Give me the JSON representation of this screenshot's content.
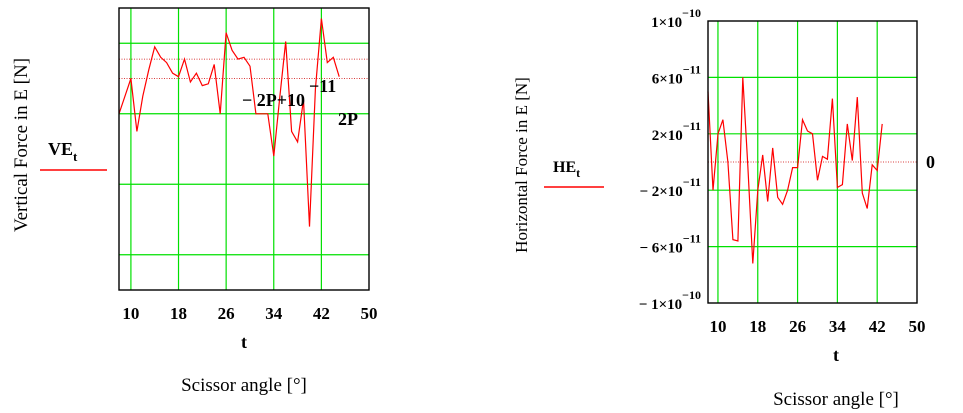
{
  "chart_data": [
    {
      "type": "line",
      "ylabel": "Vertical Force in E [N]",
      "xlabel": "Scissor angle [°]",
      "x_var": "t",
      "legend": {
        "label_main": "VE",
        "label_sub": "t"
      },
      "x_ticks": [
        "10",
        "18",
        "26",
        "34",
        "42",
        "50"
      ],
      "xlim": [
        8,
        50
      ],
      "ylim": [
        -12,
        4
      ],
      "grid": true,
      "annotations": {
        "upper_main": "− 2P+10",
        "upper_exp": "−11",
        "lower": "2P"
      },
      "marker_lines": [
        1.1,
        0
      ],
      "series": [
        {
          "color": "#ff0000",
          "x": [
            8,
            9,
            10,
            11,
            12,
            13,
            14,
            15,
            16,
            17,
            18,
            19,
            20,
            21,
            22,
            23,
            24,
            25,
            26,
            27,
            28,
            29,
            30,
            31,
            32,
            33,
            34,
            35,
            36,
            37,
            38,
            39,
            40,
            41,
            42,
            43,
            44,
            45
          ],
          "y": [
            -2,
            -1,
            0,
            -3,
            -1,
            0.5,
            1.8,
            1.2,
            0.9,
            0.3,
            0.1,
            1.1,
            -0.2,
            0.3,
            -0.4,
            -0.3,
            0.8,
            -2,
            2.6,
            1.6,
            1.1,
            1.2,
            0.7,
            -2,
            -2,
            -2,
            -4.4,
            -1.1,
            2.1,
            -3,
            -3.6,
            -1.2,
            -8.4,
            -0.6,
            3.4,
            0.9,
            1.2,
            0.1
          ]
        }
      ]
    },
    {
      "type": "line",
      "ylabel": "Horizontal Force in E [N]",
      "xlabel": "Scissor angle [°]",
      "x_var": "t",
      "legend": {
        "label_main": "HE",
        "label_sub": "t"
      },
      "x_ticks": [
        "10",
        "18",
        "26",
        "34",
        "42",
        "50"
      ],
      "xlim": [
        8,
        50
      ],
      "ylim": [
        -1e-10,
        1e-10
      ],
      "y_ticks": [
        {
          "m": "1×10",
          "e": "−10"
        },
        {
          "m": "6×10",
          "e": "−11"
        },
        {
          "m": "2×10",
          "e": "−11"
        },
        {
          "m": "− 2×10",
          "e": "−11"
        },
        {
          "m": "− 6×10",
          "e": "−11"
        },
        {
          "m": "− 1×10",
          "e": "−10"
        }
      ],
      "grid": true,
      "annotations": {
        "right": "0"
      },
      "marker_lines": [
        0
      ],
      "series": [
        {
          "color": "#ff0000",
          "x": [
            8,
            9,
            10,
            11,
            12,
            13,
            14,
            15,
            16,
            17,
            18,
            19,
            20,
            21,
            22,
            23,
            24,
            25,
            26,
            27,
            28,
            29,
            30,
            31,
            32,
            33,
            34,
            35,
            36,
            37,
            38,
            39,
            40,
            41,
            42,
            43,
            44,
            45
          ],
          "y": [
            5e-11,
            -2e-11,
            2e-11,
            3e-11,
            0,
            -5.5e-11,
            -5.6e-11,
            6e-11,
            -2.5e-12,
            -7.2e-11,
            -2e-11,
            5e-12,
            -2.8e-11,
            1e-11,
            -2.5e-11,
            -3e-11,
            -2e-11,
            -4e-12,
            -4e-12,
            3e-11,
            2.2e-11,
            2e-11,
            -1.3e-11,
            4e-12,
            2e-12,
            4.5e-11,
            -1.8e-11,
            -1.6e-11,
            2.7e-11,
            1e-12,
            4.6e-11,
            -2.2e-11,
            -3.3e-11,
            -2e-12,
            -6e-12,
            2.7e-11,
            null,
            null
          ]
        }
      ]
    }
  ]
}
